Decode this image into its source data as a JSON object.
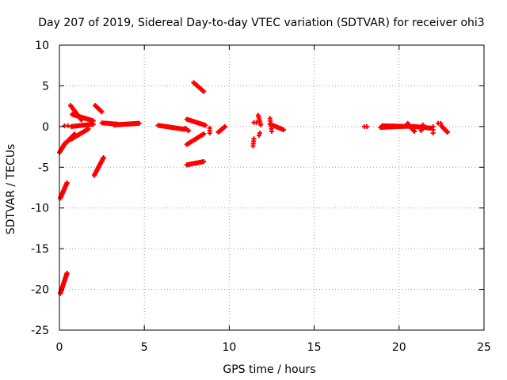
{
  "chart_data": {
    "type": "scatter",
    "title": "Day 207 of 2019, Sidereal Day-to-day VTEC variation (SDTVAR) for receiver ohi3",
    "xlabel": "GPS time / hours",
    "ylabel": "SDTVAR / TECUs",
    "xlim": [
      0,
      25
    ],
    "ylim": [
      -25,
      10
    ],
    "xticks": [
      0,
      5,
      10,
      15,
      20,
      25
    ],
    "yticks": [
      -25,
      -20,
      -15,
      -10,
      -5,
      0,
      5,
      10
    ],
    "grid": true,
    "marker": "+",
    "marker_color": "#ff0000",
    "series": [
      {
        "name": "SDTVAR",
        "segments": [
          {
            "x0": 0.05,
            "y0": -20.5,
            "x1": 0.45,
            "y1": -18.0,
            "n": 26
          },
          {
            "x0": 0.05,
            "y0": -8.8,
            "x1": 0.45,
            "y1": -6.9,
            "n": 22
          },
          {
            "x0": 0.0,
            "y0": -3.2,
            "x1": 0.35,
            "y1": -2.0,
            "n": 12
          },
          {
            "x0": 0.25,
            "y0": -2.3,
            "x1": 0.9,
            "y1": -0.9,
            "n": 16
          },
          {
            "x0": 0.65,
            "y0": -1.6,
            "x1": 1.7,
            "y1": -0.3,
            "n": 22
          },
          {
            "x0": 0.3,
            "y0": 0.1,
            "x1": 0.5,
            "y1": 0.1,
            "n": 2
          },
          {
            "x0": 0.7,
            "y0": 0.0,
            "x1": 2.0,
            "y1": 0.3,
            "n": 30
          },
          {
            "x0": 0.65,
            "y0": 2.6,
            "x1": 1.3,
            "y1": 0.8,
            "n": 18
          },
          {
            "x0": 0.75,
            "y0": 1.5,
            "x1": 2.0,
            "y1": 0.7,
            "n": 26
          },
          {
            "x0": 2.1,
            "y0": 2.6,
            "x1": 2.5,
            "y1": 1.8,
            "n": 10
          },
          {
            "x0": 2.05,
            "y0": -6.0,
            "x1": 2.6,
            "y1": -3.8,
            "n": 20
          },
          {
            "x0": 2.5,
            "y0": 0.45,
            "x1": 3.4,
            "y1": 0.3,
            "n": 12
          },
          {
            "x0": 3.2,
            "y0": 0.2,
            "x1": 4.7,
            "y1": 0.4,
            "n": 38
          },
          {
            "x0": 5.8,
            "y0": 0.15,
            "x1": 7.4,
            "y1": -0.35,
            "n": 40
          },
          {
            "x0": 7.4,
            "y0": -0.2,
            "x1": 7.6,
            "y1": -0.5,
            "n": 4
          },
          {
            "x0": 7.5,
            "y0": 0.9,
            "x1": 8.6,
            "y1": 0.15,
            "n": 20
          },
          {
            "x0": 7.5,
            "y0": -2.2,
            "x1": 8.5,
            "y1": -0.9,
            "n": 20
          },
          {
            "x0": 7.5,
            "y0": -4.7,
            "x1": 8.5,
            "y1": -4.3,
            "n": 20
          },
          {
            "x0": 7.9,
            "y0": 5.4,
            "x1": 8.5,
            "y1": 4.3,
            "n": 14
          },
          {
            "x0": 8.85,
            "y0": -0.8,
            "x1": 8.85,
            "y1": -0.2,
            "n": 3
          },
          {
            "x0": 9.35,
            "y0": -0.7,
            "x1": 9.75,
            "y1": 0.0,
            "n": 10
          },
          {
            "x0": 11.4,
            "y0": -2.4,
            "x1": 11.45,
            "y1": -1.5,
            "n": 4
          },
          {
            "x0": 11.45,
            "y0": 0.5,
            "x1": 11.6,
            "y1": 0.5,
            "n": 2
          },
          {
            "x0": 11.7,
            "y0": 1.4,
            "x1": 11.85,
            "y1": 0.2,
            "n": 6
          },
          {
            "x0": 11.75,
            "y0": -1.1,
            "x1": 11.8,
            "y1": -0.8,
            "n": 2
          },
          {
            "x0": 12.4,
            "y0": 1.0,
            "x1": 12.5,
            "y1": -0.6,
            "n": 6
          },
          {
            "x0": 12.4,
            "y0": 0.3,
            "x1": 13.2,
            "y1": -0.4,
            "n": 14
          },
          {
            "x0": 17.95,
            "y0": 0.0,
            "x1": 18.1,
            "y1": 0.0,
            "n": 2
          },
          {
            "x0": 18.9,
            "y0": -0.1,
            "x1": 20.6,
            "y1": 0.05,
            "n": 40
          },
          {
            "x0": 19.0,
            "y0": 0.1,
            "x1": 20.9,
            "y1": 0.0,
            "n": 30
          },
          {
            "x0": 20.5,
            "y0": 0.4,
            "x1": 20.9,
            "y1": -0.6,
            "n": 10
          },
          {
            "x0": 20.9,
            "y0": 0.0,
            "x1": 21.9,
            "y1": -0.2,
            "n": 20
          },
          {
            "x0": 21.3,
            "y0": -0.5,
            "x1": 21.4,
            "y1": 0.2,
            "n": 4
          },
          {
            "x0": 22.0,
            "y0": -0.8,
            "x1": 22.0,
            "y1": 0.0,
            "n": 3
          },
          {
            "x0": 22.3,
            "y0": 0.4,
            "x1": 22.45,
            "y1": 0.4,
            "n": 2
          },
          {
            "x0": 22.5,
            "y0": 0.05,
            "x1": 22.85,
            "y1": -0.7,
            "n": 10
          }
        ]
      }
    ]
  }
}
